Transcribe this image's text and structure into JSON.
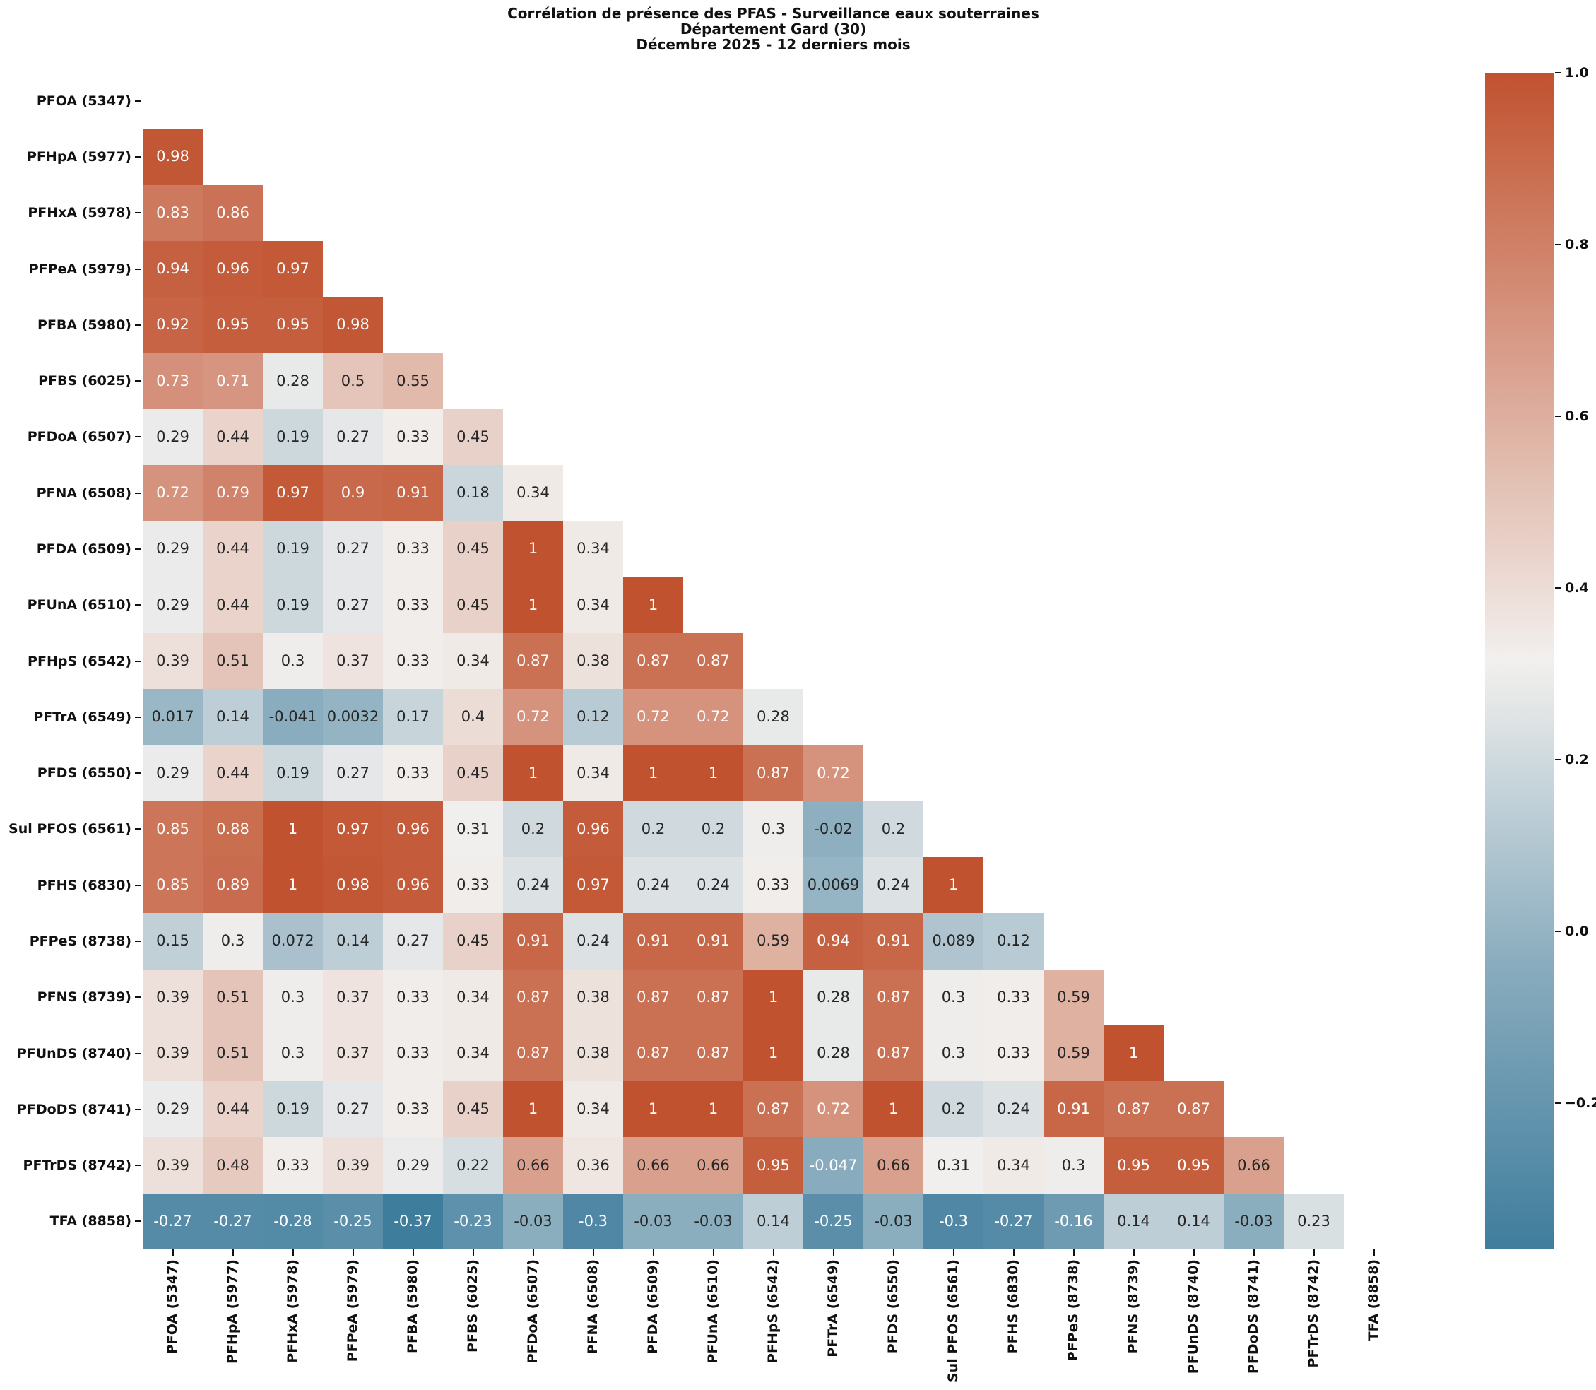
{
  "title": {
    "line1": "Corrélation de présence des PFAS - Surveillance eaux souterraines",
    "line2": "Département Gard (30)",
    "line3": "Décembre 2025 - 12 derniers mois"
  },
  "chart_data": {
    "type": "heatmap",
    "subtype": "lower-triangle-correlation-matrix",
    "labels": [
      "PFOA (5347)",
      "PFHpA (5977)",
      "PFHxA (5978)",
      "PFPeA (5979)",
      "PFBA (5980)",
      "PFBS (6025)",
      "PFDoA (6507)",
      "PFNA (6508)",
      "PFDA (6509)",
      "PFUnA (6510)",
      "PFHpS (6542)",
      "PFTrA (6549)",
      "PFDS (6550)",
      "Sul PFOS (6561)",
      "PFHS (6830)",
      "PFPeS (8738)",
      "PFNS (8739)",
      "PFUnDS (8740)",
      "PFDoDS (8741)",
      "PFTrDS (8742)",
      "TFA (8858)"
    ],
    "matrix_lower_triangle": [
      [],
      [
        0.98
      ],
      [
        0.83,
        0.86
      ],
      [
        0.94,
        0.96,
        0.97
      ],
      [
        0.92,
        0.95,
        0.95,
        0.98
      ],
      [
        0.73,
        0.71,
        0.28,
        0.5,
        0.55
      ],
      [
        0.29,
        0.44,
        0.19,
        0.27,
        0.33,
        0.45
      ],
      [
        0.72,
        0.79,
        0.97,
        0.9,
        0.91,
        0.18,
        0.34
      ],
      [
        0.29,
        0.44,
        0.19,
        0.27,
        0.33,
        0.45,
        1,
        0.34
      ],
      [
        0.29,
        0.44,
        0.19,
        0.27,
        0.33,
        0.45,
        1,
        0.34,
        1
      ],
      [
        0.39,
        0.51,
        0.3,
        0.37,
        0.33,
        0.34,
        0.87,
        0.38,
        0.87,
        0.87
      ],
      [
        0.017,
        0.14,
        -0.041,
        0.0032,
        0.17,
        0.4,
        0.72,
        0.12,
        0.72,
        0.72,
        0.28
      ],
      [
        0.29,
        0.44,
        0.19,
        0.27,
        0.33,
        0.45,
        1,
        0.34,
        1,
        1,
        0.87,
        0.72
      ],
      [
        0.85,
        0.88,
        1,
        0.97,
        0.96,
        0.31,
        0.2,
        0.96,
        0.2,
        0.2,
        0.3,
        -0.02,
        0.2
      ],
      [
        0.85,
        0.89,
        1,
        0.98,
        0.96,
        0.33,
        0.24,
        0.97,
        0.24,
        0.24,
        0.33,
        0.0069,
        0.24,
        1
      ],
      [
        0.15,
        0.3,
        0.072,
        0.14,
        0.27,
        0.45,
        0.91,
        0.24,
        0.91,
        0.91,
        0.59,
        0.94,
        0.91,
        0.089,
        0.12
      ],
      [
        0.39,
        0.51,
        0.3,
        0.37,
        0.33,
        0.34,
        0.87,
        0.38,
        0.87,
        0.87,
        1,
        0.28,
        0.87,
        0.3,
        0.33,
        0.59
      ],
      [
        0.39,
        0.51,
        0.3,
        0.37,
        0.33,
        0.34,
        0.87,
        0.38,
        0.87,
        0.87,
        1,
        0.28,
        0.87,
        0.3,
        0.33,
        0.59,
        1
      ],
      [
        0.29,
        0.44,
        0.19,
        0.27,
        0.33,
        0.45,
        1,
        0.34,
        1,
        1,
        0.87,
        0.72,
        1,
        0.2,
        0.24,
        0.91,
        0.87,
        0.87
      ],
      [
        0.39,
        0.48,
        0.33,
        0.39,
        0.29,
        0.22,
        0.66,
        0.36,
        0.66,
        0.66,
        0.95,
        -0.047,
        0.66,
        0.31,
        0.34,
        0.3,
        0.95,
        0.95,
        0.66
      ],
      [
        -0.27,
        -0.27,
        -0.28,
        -0.25,
        -0.37,
        -0.23,
        -0.03,
        -0.3,
        -0.03,
        -0.03,
        0.14,
        -0.25,
        -0.03,
        -0.3,
        -0.27,
        -0.16,
        0.14,
        0.14,
        -0.03,
        0.23
      ]
    ],
    "vmin": -0.37,
    "vmax": 1.0,
    "colormap": {
      "negative_end": "#3f7d9d",
      "negative_mid": "#8caebf",
      "center": "#f2f0ee",
      "positive_end": "#c1522f",
      "dark_text": "#262626",
      "light_text": "#ffffff"
    },
    "colorbar_ticks": [
      {
        "label": "1.0",
        "value": 1.0
      },
      {
        "label": "0.8",
        "value": 0.8
      },
      {
        "label": "0.6",
        "value": 0.6
      },
      {
        "label": "0.4",
        "value": 0.4
      },
      {
        "label": "0.2",
        "value": 0.2
      },
      {
        "label": "0.0",
        "value": 0.0
      },
      {
        "label": "−0.2",
        "value": -0.2
      }
    ],
    "legend_position": "right",
    "grid": false
  }
}
